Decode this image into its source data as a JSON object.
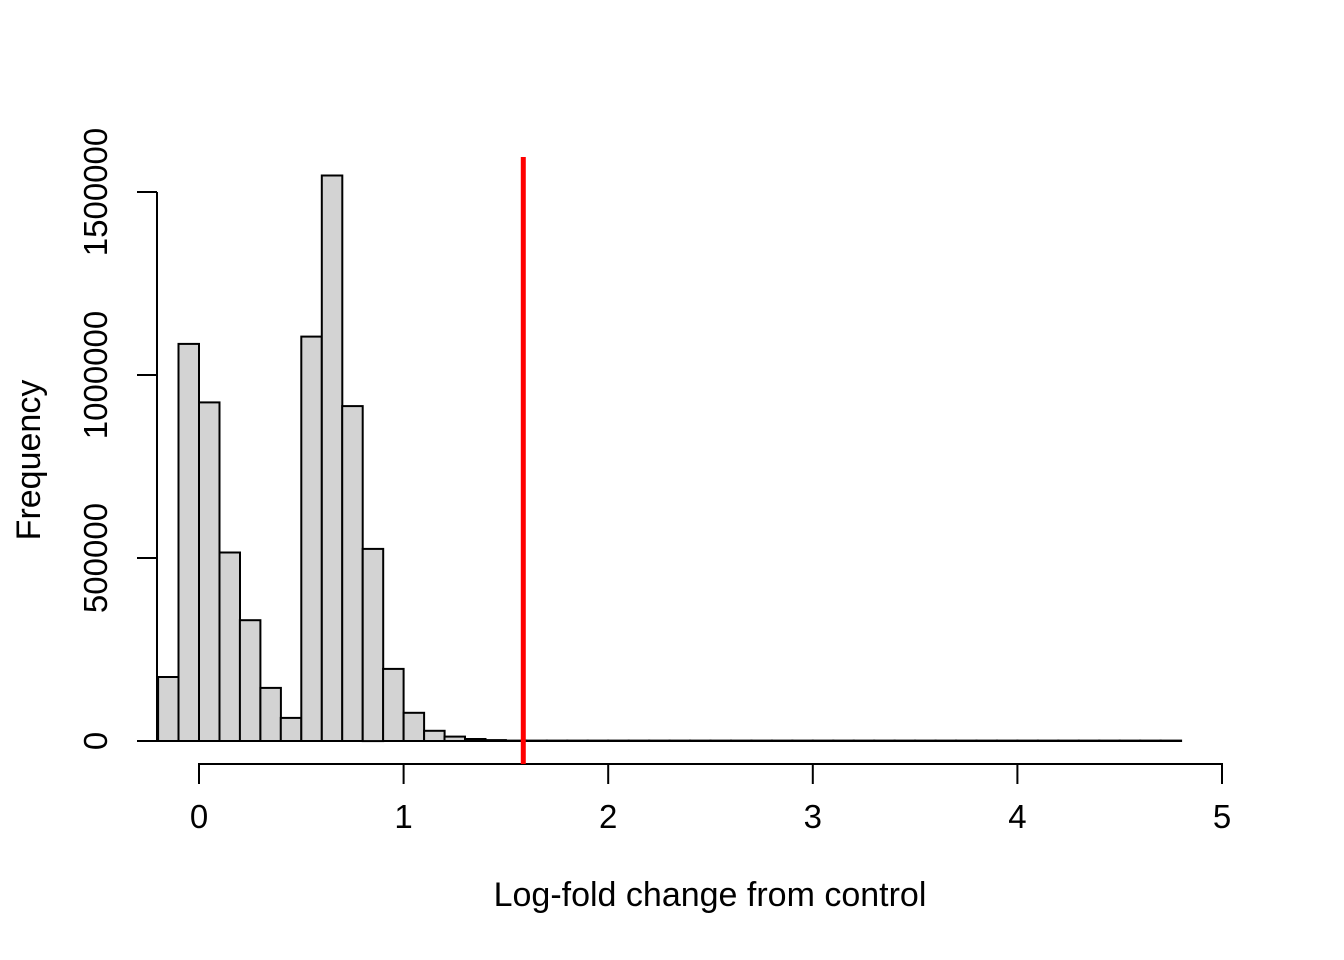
{
  "chart_data": {
    "type": "histogram",
    "title": "",
    "xlabel": "Log-fold change from control",
    "ylabel": "Frequency",
    "x_tick_values": [
      0,
      1,
      2,
      3,
      4,
      5
    ],
    "x_tick_labels": [
      "0",
      "1",
      "2",
      "3",
      "4",
      "5"
    ],
    "y_tick_values": [
      0,
      500000,
      1000000,
      1500000
    ],
    "y_tick_labels": [
      "0",
      "500000",
      "1000000",
      "1500000"
    ],
    "bin_start": -0.2,
    "bin_width": 0.1,
    "counts": [
      175000,
      1085000,
      925000,
      515000,
      330000,
      145000,
      63000,
      1105000,
      1545000,
      915000,
      525000,
      197000,
      77000,
      28000,
      12000,
      5500,
      2500,
      1200,
      400,
      400,
      400,
      400,
      400,
      400,
      400,
      400,
      400,
      400,
      400,
      400,
      400,
      400,
      400,
      400,
      400,
      400,
      400,
      400,
      400,
      400,
      400,
      400,
      400,
      400,
      400,
      400,
      400,
      400,
      400,
      400
    ],
    "xlim": [
      -0.2,
      4.8
    ],
    "ylim": [
      0,
      1560000
    ],
    "grid": false,
    "legend": false,
    "threshold_line": {
      "value": 1.585,
      "color": "#FF0000",
      "orientation": "vertical"
    },
    "bar_fill": "#D3D3D3",
    "bar_border": "#000000",
    "axis_color": "#000000",
    "background": "#FFFFFF"
  }
}
